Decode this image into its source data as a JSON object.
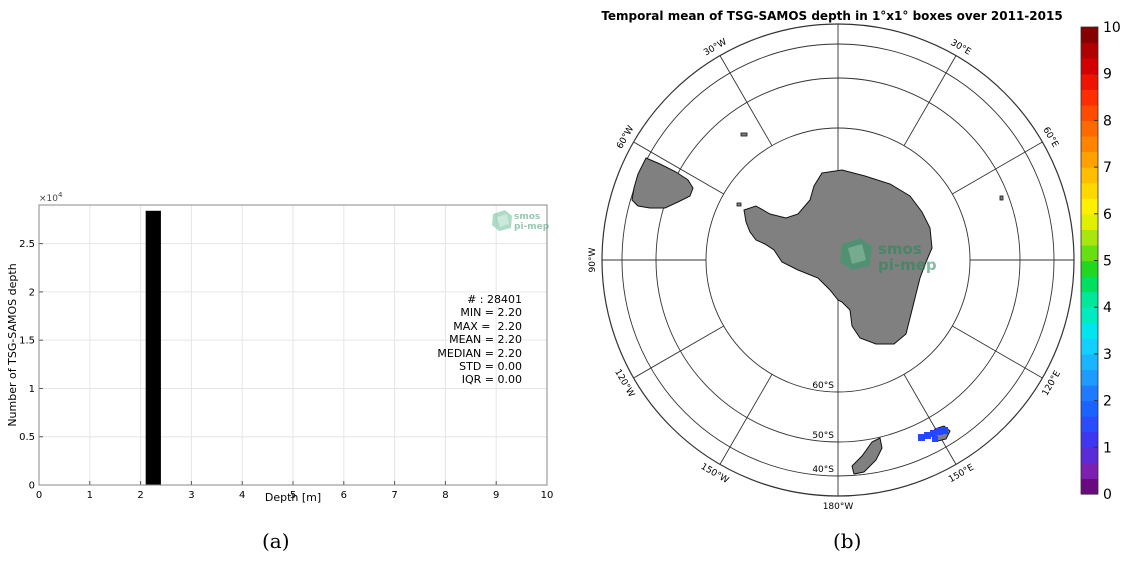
{
  "chart_data": [
    {
      "type": "bar",
      "title": "",
      "xlabel": "Depth [m]",
      "ylabel": "Number of TSG-SAMOS depth",
      "y_exponent_label": "×10",
      "y_exponent_power": "4",
      "xlim": [
        0,
        10
      ],
      "ylim": [
        0,
        2.9
      ],
      "x_ticks": [
        "0",
        "1",
        "2",
        "3",
        "4",
        "5",
        "6",
        "7",
        "8",
        "9",
        "10"
      ],
      "y_ticks": [
        "0",
        "0.5",
        "1",
        "1.5",
        "2",
        "2.5"
      ],
      "grid": true,
      "bars": [
        {
          "x_start": 2.1,
          "x_end": 2.4,
          "value": 2.8401,
          "color": "#000000"
        }
      ],
      "stats": [
        "# : 28401",
        "MIN = 2.20",
        "MAX =  2.20",
        "MEAN = 2.20",
        "MEDIAN = 2.20",
        "STD = 0.00",
        "IQR = 0.00"
      ],
      "logo": {
        "line1": "smos",
        "line2": "pi-mep"
      }
    },
    {
      "type": "heatmap",
      "title": "Temporal mean of TSG-SAMOS depth in 1°x1° boxes over 2011-2015",
      "projection": "south-polar-stereographic",
      "longitude_labels": [
        "30°W",
        "30°E",
        "60°W",
        "60°E",
        "90°W",
        "120°W",
        "120°E",
        "150°W",
        "150°E",
        "180°W"
      ],
      "latitude_labels": [
        "60°S",
        "50°S",
        "40°S"
      ],
      "colorbar": {
        "range": [
          0,
          10
        ],
        "ticks": [
          "0",
          "1",
          "2",
          "3",
          "4",
          "5",
          "6",
          "7",
          "8",
          "9",
          "10"
        ],
        "colors": [
          "#6a0a80",
          "#7d1fb0",
          "#5a2bd6",
          "#3f36f0",
          "#2a4cff",
          "#1a63ff",
          "#1e7bff",
          "#1e9bff",
          "#19b5ff",
          "#12d0ff",
          "#00e5ee",
          "#00ecc0",
          "#00e89a",
          "#00e060",
          "#22d81e",
          "#66e010",
          "#a8e610",
          "#e0f000",
          "#ffef00",
          "#ffd800",
          "#ffbf00",
          "#ffa200",
          "#ff8400",
          "#ff6a00",
          "#ff4c00",
          "#ff2e00",
          "#ee1400",
          "#d40000",
          "#b00000",
          "#860000"
        ]
      },
      "data_cells": [
        {
          "lon": 150,
          "lat": -44,
          "value": 2.2
        }
      ],
      "logo": {
        "line1": "smos",
        "line2": "pi-mep"
      }
    }
  ],
  "captions": {
    "a": "(a)",
    "b": "(b)"
  }
}
